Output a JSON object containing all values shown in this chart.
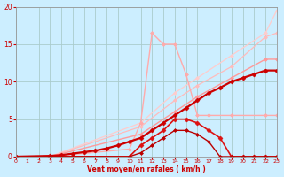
{
  "title": "",
  "xlabel": "Vent moyen/en rafales ( km/h )",
  "ylabel": "",
  "background_color": "#cceeff",
  "grid_color": "#aacccc",
  "xlim": [
    0,
    23
  ],
  "ylim": [
    0,
    20
  ],
  "xticks": [
    0,
    1,
    2,
    3,
    4,
    5,
    6,
    7,
    8,
    9,
    10,
    11,
    12,
    13,
    14,
    15,
    16,
    17,
    18,
    19,
    20,
    21,
    22,
    23
  ],
  "yticks": [
    0,
    5,
    10,
    15,
    20
  ],
  "lines": [
    {
      "x": [
        0,
        3,
        11,
        14,
        16,
        19,
        22,
        23
      ],
      "y": [
        0,
        0,
        4.5,
        8.5,
        10.5,
        13.5,
        16.5,
        19.5
      ],
      "color": "#ffcccc",
      "lw": 0.9,
      "marker": "D",
      "ms": 2.0
    },
    {
      "x": [
        0,
        3,
        11,
        14,
        16,
        19,
        22,
        23
      ],
      "y": [
        0,
        0,
        4.0,
        7.5,
        9.5,
        12.0,
        16.0,
        16.5
      ],
      "color": "#ffbbbb",
      "lw": 0.9,
      "marker": "D",
      "ms": 2.0
    },
    {
      "x": [
        0,
        3,
        10,
        11,
        12,
        13,
        14,
        15,
        16,
        17,
        19,
        22,
        23
      ],
      "y": [
        0,
        0,
        1.0,
        4.5,
        16.5,
        15.0,
        15.0,
        11.0,
        5.5,
        5.5,
        5.5,
        5.5,
        5.5
      ],
      "color": "#ffaaaa",
      "lw": 1.0,
      "marker": "D",
      "ms": 2.0
    },
    {
      "x": [
        0,
        3,
        11,
        14,
        16,
        19,
        22,
        23
      ],
      "y": [
        0,
        0,
        3.0,
        6.0,
        8.0,
        10.5,
        13.0,
        13.0
      ],
      "color": "#ff9999",
      "lw": 1.0,
      "marker": "D",
      "ms": 2.0
    },
    {
      "x": [
        0,
        3,
        4,
        5,
        6,
        7,
        8,
        9,
        10,
        11,
        12,
        13,
        14,
        15,
        16,
        17,
        18,
        19,
        20,
        21,
        22,
        23
      ],
      "y": [
        0,
        0.1,
        0.2,
        0.4,
        0.6,
        0.8,
        1.1,
        1.5,
        2.0,
        2.5,
        3.5,
        4.5,
        5.5,
        6.5,
        7.5,
        8.5,
        9.2,
        10.0,
        10.5,
        11.0,
        11.5,
        11.5
      ],
      "color": "#cc0000",
      "lw": 1.6,
      "marker": "D",
      "ms": 2.5
    },
    {
      "x": [
        0,
        3,
        10,
        11,
        12,
        13,
        14,
        15,
        16,
        17,
        18,
        19,
        20,
        21,
        22,
        23
      ],
      "y": [
        0,
        0,
        0,
        1.5,
        2.5,
        3.5,
        5.0,
        5.0,
        4.5,
        3.5,
        2.5,
        0,
        0,
        0,
        0,
        0
      ],
      "color": "#dd1111",
      "lw": 1.2,
      "marker": "D",
      "ms": 2.5
    },
    {
      "x": [
        0,
        3,
        10,
        11,
        12,
        13,
        14,
        15,
        16,
        17,
        18,
        19,
        20,
        21,
        22,
        23
      ],
      "y": [
        0,
        0,
        0,
        0.5,
        1.5,
        2.5,
        3.5,
        3.5,
        3.0,
        2.0,
        0,
        0,
        0,
        0,
        0,
        0
      ],
      "color": "#bb0000",
      "lw": 1.0,
      "marker": "D",
      "ms": 2.0
    }
  ]
}
